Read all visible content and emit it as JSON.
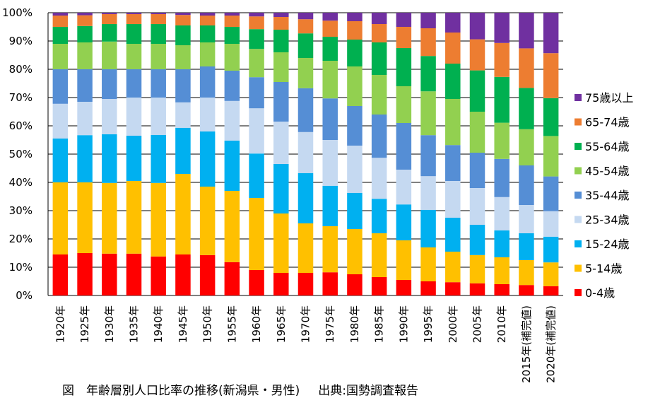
{
  "chart_data": {
    "type": "bar",
    "stacked": true,
    "percent_stacked": true,
    "categories": [
      "1920年",
      "1925年",
      "1930年",
      "1935年",
      "1940年",
      "1945年",
      "1950年",
      "1955年",
      "1960年",
      "1965年",
      "1970年",
      "1975年",
      "1980年",
      "1985年",
      "1990年",
      "1995年",
      "2000年",
      "2005年",
      "2010年",
      "2015年(補完値)",
      "2020年(補完値)"
    ],
    "ylim": [
      0,
      100
    ],
    "yticks": [
      "0%",
      "10%",
      "20%",
      "30%",
      "40%",
      "50%",
      "60%",
      "70%",
      "80%",
      "90%",
      "100%"
    ],
    "grid": true,
    "legend_position": "right",
    "series": [
      {
        "name": "0-4歳",
        "color": "#ff0000",
        "values": [
          14.5,
          15.0,
          14.8,
          14.8,
          13.8,
          14.5,
          14.3,
          11.8,
          9.0,
          8.0,
          8.0,
          8.2,
          7.5,
          6.5,
          5.5,
          5.0,
          4.7,
          4.3,
          4.0,
          3.7,
          3.3
        ]
      },
      {
        "name": "5-14歳",
        "color": "#ffc000",
        "values": [
          25.5,
          25.0,
          25.0,
          25.7,
          26.0,
          28.5,
          24.2,
          25.2,
          25.5,
          21.0,
          17.5,
          16.3,
          16.0,
          15.5,
          14.0,
          12.0,
          10.8,
          10.0,
          9.5,
          8.8,
          8.4
        ]
      },
      {
        "name": "15-24歳",
        "color": "#00b0f0",
        "values": [
          15.5,
          16.7,
          17.2,
          16.0,
          17.0,
          16.3,
          19.5,
          17.8,
          15.7,
          17.5,
          17.8,
          14.3,
          12.8,
          12.2,
          12.7,
          13.3,
          12.0,
          10.7,
          9.5,
          9.5,
          9.1
        ]
      },
      {
        "name": "25-34歳",
        "color": "#c5d9f1",
        "values": [
          12.3,
          11.8,
          12.5,
          13.5,
          13.2,
          9.0,
          12.0,
          14.0,
          16.0,
          15.0,
          14.5,
          16.2,
          16.7,
          14.5,
          12.3,
          11.9,
          13.0,
          13.0,
          11.8,
          10.0,
          9.0
        ]
      },
      {
        "name": "35-44歳",
        "color": "#558ed5",
        "values": [
          12.2,
          11.5,
          10.5,
          10.0,
          10.0,
          11.7,
          11.0,
          10.7,
          11.0,
          14.0,
          15.5,
          14.7,
          14.0,
          15.3,
          16.5,
          14.5,
          12.7,
          12.5,
          13.5,
          14.0,
          12.3
        ]
      },
      {
        "name": "45-54歳",
        "color": "#92d050",
        "values": [
          9.0,
          9.5,
          9.8,
          9.0,
          9.0,
          8.5,
          8.5,
          9.5,
          10.0,
          10.5,
          10.7,
          13.3,
          14.0,
          14.0,
          13.0,
          15.5,
          16.3,
          14.5,
          12.8,
          12.8,
          14.3
        ]
      },
      {
        "name": "55-64歳",
        "color": "#00b050",
        "values": [
          6.0,
          5.8,
          6.2,
          7.0,
          7.0,
          7.0,
          6.0,
          6.0,
          7.0,
          8.0,
          8.7,
          8.5,
          9.5,
          11.5,
          13.5,
          12.5,
          12.5,
          14.6,
          16.2,
          14.6,
          13.4
        ]
      },
      {
        "name": "65-74歳",
        "color": "#ed7d31",
        "values": [
          4.0,
          3.8,
          3.5,
          3.5,
          3.5,
          3.7,
          3.5,
          4.0,
          4.5,
          4.5,
          5.0,
          5.7,
          6.5,
          6.5,
          7.5,
          9.8,
          11.0,
          11.0,
          12.0,
          14.0,
          15.9
        ]
      },
      {
        "name": "75歳以上",
        "color": "#7030a0",
        "values": [
          1.0,
          0.9,
          0.5,
          0.5,
          0.5,
          0.8,
          1.0,
          1.0,
          1.3,
          1.5,
          2.3,
          2.8,
          3.0,
          4.0,
          5.0,
          5.5,
          7.0,
          9.4,
          10.7,
          12.6,
          14.3
        ]
      }
    ]
  },
  "caption": {
    "title": "図　年齢層別人口比率の推移(新潟県・男性)",
    "source": "出典:国勢調査報告"
  }
}
